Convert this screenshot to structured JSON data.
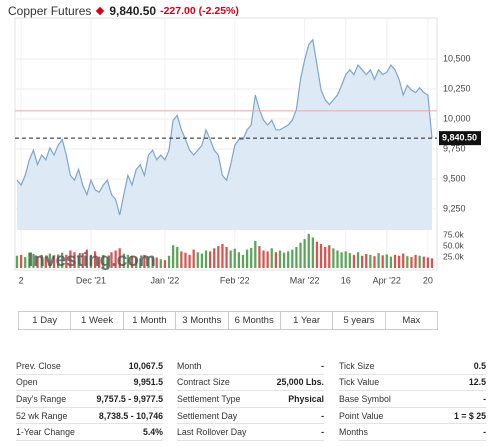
{
  "header": {
    "title": "Copper Futures",
    "price": "9,840.50",
    "change": "-227.00 (-2.25%)"
  },
  "chart_data": {
    "type": "line",
    "color": "#7ea6cb",
    "fill_color": "#dde9f4",
    "values": [
      9490,
      9450,
      9530,
      9660,
      9740,
      9620,
      9700,
      9660,
      9760,
      9700,
      9780,
      9830,
      9700,
      9530,
      9490,
      9580,
      9450,
      9370,
      9490,
      9410,
      9390,
      9450,
      9490,
      9370,
      9330,
      9200,
      9370,
      9530,
      9450,
      9580,
      9620,
      9530,
      9700,
      9740,
      9660,
      9700,
      9660,
      9740,
      9990,
      10030,
      9910,
      9830,
      9740,
      9700,
      9740,
      9780,
      9910,
      9830,
      9740,
      9700,
      9530,
      9490,
      9620,
      9780,
      9830,
      9830,
      9910,
      9950,
      10200,
      10080,
      9990,
      9950,
      9990,
      9910,
      9910,
      9930,
      9950,
      9990,
      10080,
      10330,
      10490,
      10620,
      10660,
      10450,
      10240,
      10160,
      10120,
      10160,
      10200,
      10280,
      10370,
      10410,
      10370,
      10450,
      10410,
      10370,
      10410,
      10330,
      10410,
      10370,
      10390,
      10450,
      10410,
      10330,
      10200,
      10280,
      10240,
      10220,
      10260,
      10220,
      10200,
      9840.5
    ],
    "ylim": [
      9100,
      10800
    ],
    "yticks": [
      {
        "value": 9250,
        "label": "9,250"
      },
      {
        "value": 9500,
        "label": "9,500"
      },
      {
        "value": 9750,
        "label": "9,750"
      },
      {
        "value": 10000,
        "label": "10,000"
      },
      {
        "value": 10250,
        "label": "10,250"
      },
      {
        "value": 10500,
        "label": "10,500"
      }
    ],
    "xticks": [
      {
        "value": 1,
        "label": "2"
      },
      {
        "value": 18,
        "label": "Dec '21"
      },
      {
        "value": 36,
        "label": "Jan '22"
      },
      {
        "value": 53,
        "label": "Feb '22"
      },
      {
        "value": 70,
        "label": "Mar '22"
      },
      {
        "value": 80,
        "label": "16"
      },
      {
        "value": 90,
        "label": "Apr '22"
      },
      {
        "value": 100,
        "label": "20"
      }
    ],
    "grid": true,
    "prev_close_line": {
      "value": 10067.5,
      "color": "#f2a5a5"
    },
    "price_marker": {
      "value": 9840.5,
      "label": "9,840.50"
    },
    "volume_values": [
      28000,
      30000,
      25000,
      35000,
      32000,
      27000,
      30000,
      26000,
      33000,
      29000,
      31000,
      35000,
      30000,
      40000,
      36000,
      28000,
      34000,
      42000,
      30000,
      38000,
      26000,
      30000,
      24000,
      36000,
      40000,
      45000,
      33000,
      30000,
      28000,
      25000,
      22000,
      30000,
      27000,
      25000,
      24000,
      20000,
      18000,
      28000,
      52000,
      48000,
      38000,
      35000,
      30000,
      42000,
      36000,
      33000,
      40000,
      38000,
      45000,
      50000,
      55000,
      48000,
      40000,
      44000,
      36000,
      30000,
      42000,
      46000,
      62000,
      50000,
      40000,
      38000,
      45000,
      36000,
      40000,
      35000,
      38000,
      42000,
      48000,
      58000,
      66000,
      78000,
      70000,
      60000,
      55000,
      48000,
      52000,
      45000,
      40000,
      36000,
      38000,
      34000,
      30000,
      36000,
      28000,
      32000,
      30000,
      27000,
      34000,
      29000,
      31000,
      26000,
      30000,
      28000,
      33000,
      27000,
      25000,
      30000,
      28000,
      26000,
      24000,
      22000
    ],
    "volume_ylim": [
      0,
      80000
    ],
    "volume_ticks": [
      {
        "value": 25000,
        "label": "25.0k"
      },
      {
        "value": 50000,
        "label": "50.0k"
      },
      {
        "value": 75000,
        "label": "75.0k"
      }
    ],
    "up_color": "#5aa55a",
    "down_color": "#d9534f",
    "watermark": "Investing.com"
  },
  "ranges": [
    "1 Day",
    "1 Week",
    "1 Month",
    "3 Months",
    "6 Months",
    "1 Year",
    "5 years",
    "Max"
  ],
  "table": {
    "columns": [
      [
        [
          "Prev. Close",
          "10,067.5"
        ],
        [
          "Open",
          "9,951.5"
        ],
        [
          "Day's Range",
          "9,757.5 - 9,977.5"
        ],
        [
          "52 wk Range",
          "8,738.5 - 10,746"
        ],
        [
          "1-Year Change",
          "5.4%"
        ]
      ],
      [
        [
          "Month",
          "-"
        ],
        [
          "Contract Size",
          "25,000 Lbs."
        ],
        [
          "Settlement Type",
          "Physical"
        ],
        [
          "Settlement Day",
          "-"
        ],
        [
          "Last Rollover Day",
          "-"
        ]
      ],
      [
        [
          "Tick Size",
          "0.5"
        ],
        [
          "Tick Value",
          "12.5"
        ],
        [
          "Base Symbol",
          "-"
        ],
        [
          "Point Value",
          "1 = $ 25"
        ],
        [
          "Months",
          "-"
        ]
      ]
    ]
  }
}
